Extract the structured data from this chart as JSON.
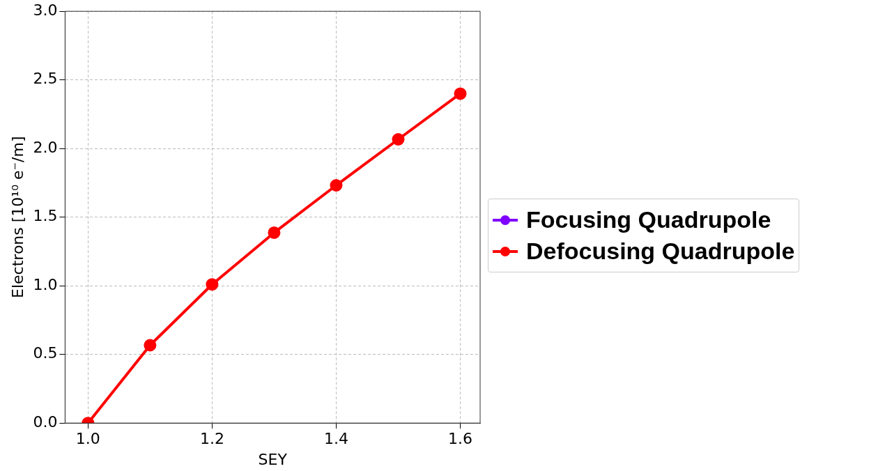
{
  "chart_data": {
    "type": "line",
    "xlabel": "SEY",
    "ylabel": "Electrons [10¹⁰ e⁻/m]",
    "x": [
      1.0,
      1.1,
      1.2,
      1.3,
      1.4,
      1.5,
      1.6
    ],
    "series": [
      {
        "name": "Focusing Quadrupole",
        "color": "#7f00ff",
        "values": [
          null,
          null,
          null,
          null,
          null,
          null,
          null
        ]
      },
      {
        "name": "Defocusing Quadrupole",
        "color": "#ff0000",
        "values": [
          0,
          0.567,
          1.01,
          1.387,
          1.732,
          2.067,
          2.4
        ]
      }
    ],
    "xlim": [
      0.963,
      1.632
    ],
    "xticks": [
      {
        "value": 1.0,
        "label": "1.0"
      },
      {
        "value": 1.2,
        "label": "1.2"
      },
      {
        "value": 1.4,
        "label": "1.4"
      },
      {
        "value": 1.6,
        "label": "1.6"
      }
    ],
    "ylim": [
      0,
      3
    ],
    "yticks": [
      {
        "value": 0,
        "label": "0.0"
      },
      {
        "value": 0.5,
        "label": "0.5"
      },
      {
        "value": 1,
        "label": "1.0"
      },
      {
        "value": 1.5,
        "label": "1.5"
      },
      {
        "value": 2,
        "label": "2.0"
      },
      {
        "value": 2.5,
        "label": "2.5"
      },
      {
        "value": 3,
        "label": "3.0"
      }
    ],
    "grid": true,
    "legend": "right",
    "marker": "circle",
    "line_style": "solid"
  }
}
